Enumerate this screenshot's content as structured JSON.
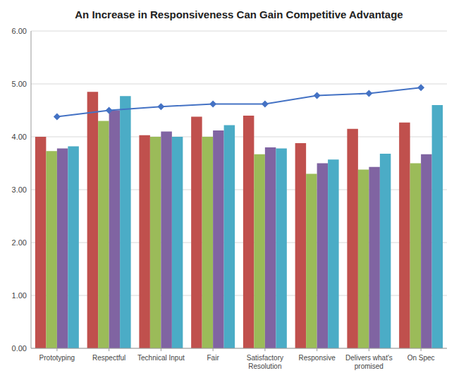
{
  "chart_data": {
    "type": "bar",
    "title": "An Increase in Responsiveness Can Gain Competitive Advantage",
    "categories": [
      "Prototyping",
      "Respectful",
      "Technical Input",
      "Fair",
      "Satisfactory\nResolution",
      "Responsive",
      "Delivers what's\npromised",
      "On Spec"
    ],
    "series": [
      {
        "color": "#c0504d",
        "values": [
          4.0,
          4.85,
          4.03,
          4.38,
          4.4,
          3.88,
          4.15,
          4.27
        ]
      },
      {
        "color": "#9bbb59",
        "values": [
          3.73,
          4.3,
          4.0,
          4.0,
          3.67,
          3.3,
          3.38,
          3.5
        ]
      },
      {
        "color": "#8064a2",
        "values": [
          3.78,
          4.5,
          4.1,
          4.12,
          3.8,
          3.5,
          3.43,
          3.67
        ]
      },
      {
        "color": "#4bacc6",
        "values": [
          3.82,
          4.77,
          4.0,
          4.22,
          3.78,
          3.57,
          3.68,
          4.6
        ]
      },
      {
        "type": "line",
        "color": "#4472c4",
        "marker": "diamond",
        "values": [
          4.38,
          4.5,
          4.57,
          4.62,
          4.62,
          4.78,
          4.82,
          4.93
        ]
      }
    ],
    "ylim": [
      0,
      6.0
    ],
    "yticks": [
      {
        "value": 0.0,
        "label": "0.00"
      },
      {
        "value": 1.0,
        "label": "1.00"
      },
      {
        "value": 2.0,
        "label": "2.00"
      },
      {
        "value": 3.0,
        "label": "3.00"
      },
      {
        "value": 4.0,
        "label": "4.00"
      },
      {
        "value": 5.0,
        "label": "5.00"
      },
      {
        "value": 6.0,
        "label": "6.00"
      }
    ],
    "grid": true
  }
}
